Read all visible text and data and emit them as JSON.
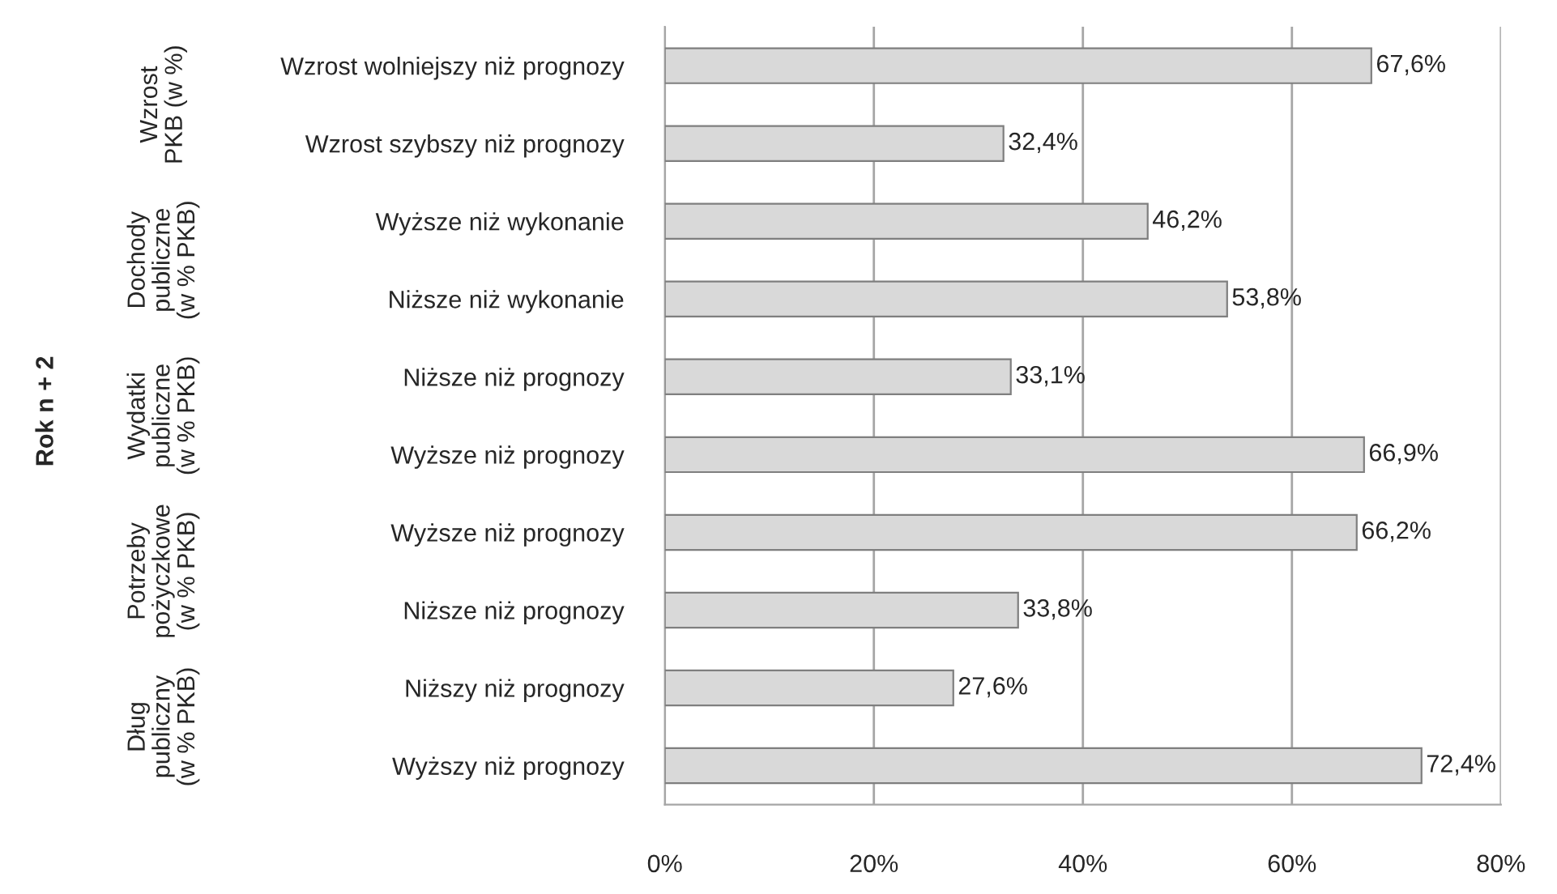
{
  "chart_data": {
    "type": "bar",
    "orientation": "horizontal",
    "categories": [
      "Wzrost wolniejszy niż prognozy",
      "Wzrost szybszy niż prognozy",
      "Wyższe niż wykonanie",
      "Niższe niż wykonanie",
      "Niższe niż prognozy",
      "Wyższe niż prognozy",
      "Wyższe niż prognozy",
      "Niższe niż prognozy",
      "Niższy niż prognozy",
      "Wyższy niż prognozy"
    ],
    "values": [
      67.6,
      32.4,
      46.2,
      53.8,
      33.1,
      66.9,
      66.2,
      33.8,
      27.6,
      72.4
    ],
    "value_labels": [
      "67,6%",
      "32,4%",
      "46,2%",
      "53,8%",
      "33,1%",
      "66,9%",
      "66,2%",
      "33,8%",
      "27,6%",
      "72,4%"
    ],
    "color": "#d9d9d9",
    "annotations": [
      "Rok n + 2",
      "Wzrost\nPKB (w %)",
      "Dochody\npubliczne\n(w % PKB)",
      "Wydatki\npubliczne\n(w % PKB)",
      "Potrzeby\npożyczkowe\n(w % PKB)",
      "Dług\npubliczny\n(w % PKB)"
    ],
    "xlim": [
      0,
      80
    ],
    "xticks": [
      {
        "value": 0,
        "label": "0%"
      },
      {
        "value": 20,
        "label": "20%"
      },
      {
        "value": 40,
        "label": "40%"
      },
      {
        "value": 60,
        "label": "60%"
      },
      {
        "value": 80,
        "label": "80%"
      }
    ],
    "grid": "x",
    "legend": false
  }
}
